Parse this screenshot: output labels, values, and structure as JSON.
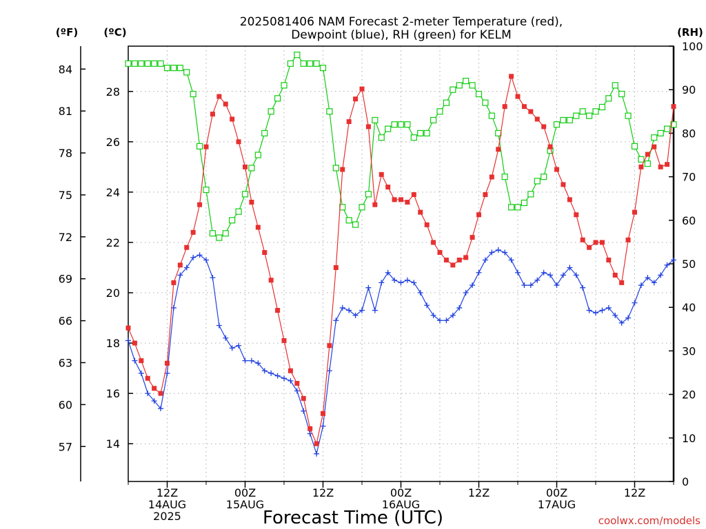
{
  "chart_data": {
    "type": "line",
    "title_line1": "2025081406 NAM Forecast 2-meter Temperature (red),",
    "title_line2": "Dewpoint (blue), RH (green) for KELM",
    "unit_f": "(ºF)",
    "unit_c": "(ºC)",
    "unit_rh": "(RH)",
    "xlabel": "Forecast Time (UTC)",
    "credit": "coolwx.com/models",
    "x_unit": "forecast hour",
    "xlim": [
      6,
      90
    ],
    "ylim_c": [
      12.5,
      29.8
    ],
    "ylim_rh": [
      0,
      100
    ],
    "grid": true,
    "colors": {
      "temperature": "#e83030",
      "dewpoint": "#2040e0",
      "rh": "#10cc10"
    },
    "f_ticks": [
      57,
      60,
      63,
      66,
      69,
      72,
      75,
      78,
      81,
      84
    ],
    "c_ticks": [
      14,
      16,
      18,
      20,
      22,
      24,
      26,
      28
    ],
    "rh_ticks": [
      0,
      10,
      20,
      30,
      40,
      50,
      60,
      70,
      80,
      90,
      100
    ],
    "x_ticks": [
      {
        "hour": 12,
        "lines": [
          "12Z",
          "14AUG",
          "2025"
        ]
      },
      {
        "hour": 24,
        "lines": [
          "00Z",
          "15AUG"
        ]
      },
      {
        "hour": 36,
        "lines": [
          "12Z"
        ]
      },
      {
        "hour": 48,
        "lines": [
          "00Z",
          "16AUG"
        ]
      },
      {
        "hour": 60,
        "lines": [
          "12Z"
        ]
      },
      {
        "hour": 72,
        "lines": [
          "00Z",
          "17AUG"
        ]
      },
      {
        "hour": 84,
        "lines": [
          "12Z"
        ]
      }
    ],
    "x": [
      6,
      7,
      8,
      9,
      10,
      11,
      12,
      13,
      14,
      15,
      16,
      17,
      18,
      19,
      20,
      21,
      22,
      23,
      24,
      25,
      26,
      27,
      28,
      29,
      30,
      31,
      32,
      33,
      34,
      35,
      36,
      37,
      38,
      39,
      40,
      41,
      42,
      43,
      44,
      45,
      46,
      47,
      48,
      49,
      50,
      51,
      52,
      53,
      54,
      55,
      56,
      57,
      58,
      59,
      60,
      61,
      62,
      63,
      64,
      65,
      66,
      67,
      68,
      69,
      70,
      71,
      72,
      73,
      74,
      75,
      76,
      77,
      78,
      79,
      80,
      81,
      82,
      83,
      84,
      85,
      86,
      87,
      88,
      89,
      90
    ],
    "series": [
      {
        "name": "Temperature",
        "color": "#e83030",
        "marker": "filled-square",
        "unit": "C",
        "values": [
          18.6,
          18.0,
          17.3,
          16.6,
          16.2,
          16.0,
          17.2,
          20.4,
          21.1,
          21.8,
          22.4,
          23.5,
          25.8,
          27.1,
          27.8,
          27.5,
          26.9,
          26.0,
          25.0,
          23.6,
          22.6,
          21.6,
          20.5,
          19.3,
          18.1,
          16.9,
          16.4,
          15.8,
          14.6,
          14.0,
          15.2,
          17.9,
          21.0,
          24.9,
          26.8,
          27.7,
          28.1,
          26.6,
          23.5,
          24.7,
          24.2,
          23.7,
          23.7,
          23.6,
          23.9,
          23.2,
          22.7,
          22.0,
          21.6,
          21.3,
          21.1,
          21.3,
          21.4,
          22.2,
          23.1,
          23.9,
          24.6,
          25.7,
          27.4,
          28.6,
          27.8,
          27.4,
          27.2,
          26.9,
          26.6,
          25.8,
          24.9,
          24.3,
          23.7,
          23.1,
          22.1,
          21.8,
          22.0,
          22.0,
          21.3,
          20.7,
          20.4,
          22.1,
          23.2,
          25.0,
          25.5,
          25.8,
          25.0,
          25.1,
          27.4
        ]
      },
      {
        "name": "Dewpoint",
        "color": "#2040e0",
        "marker": "plus",
        "unit": "C",
        "values": [
          18.1,
          17.3,
          16.8,
          16.0,
          15.7,
          15.4,
          16.8,
          19.4,
          20.7,
          21.0,
          21.4,
          21.5,
          21.3,
          20.6,
          18.7,
          18.2,
          17.8,
          17.9,
          17.3,
          17.3,
          17.2,
          16.9,
          16.8,
          16.7,
          16.6,
          16.5,
          16.1,
          15.3,
          14.4,
          13.6,
          14.7,
          16.9,
          18.9,
          19.4,
          19.3,
          19.1,
          19.3,
          20.2,
          19.3,
          20.4,
          20.8,
          20.5,
          20.4,
          20.5,
          20.4,
          20.0,
          19.5,
          19.1,
          18.9,
          18.9,
          19.1,
          19.4,
          20.0,
          20.3,
          20.8,
          21.3,
          21.6,
          21.7,
          21.6,
          21.3,
          20.8,
          20.3,
          20.3,
          20.5,
          20.8,
          20.7,
          20.3,
          20.7,
          21.0,
          20.7,
          20.2,
          19.3,
          19.2,
          19.3,
          19.4,
          19.1,
          18.8,
          19.0,
          19.6,
          20.3,
          20.6,
          20.4,
          20.7,
          21.1,
          21.3
        ]
      },
      {
        "name": "RH",
        "color": "#10cc10",
        "marker": "open-square",
        "unit": "%",
        "values": [
          96,
          96,
          96,
          96,
          96,
          96,
          95,
          95,
          95,
          94,
          89,
          77,
          67,
          57,
          56,
          57,
          60,
          62,
          66,
          72,
          75,
          80,
          85,
          88,
          91,
          96,
          98,
          96,
          96,
          96,
          95,
          85,
          72,
          63,
          60,
          59,
          63,
          66,
          83,
          79,
          81,
          82,
          82,
          82,
          79,
          80,
          80,
          83,
          85,
          87,
          90,
          91,
          92,
          91,
          89,
          87,
          84,
          80,
          70,
          63,
          63,
          64,
          66,
          69,
          70,
          76,
          82,
          83,
          83,
          84,
          85,
          84,
          85,
          86,
          88,
          91,
          89,
          84,
          77,
          74,
          73,
          79,
          80,
          81,
          82
        ]
      }
    ]
  }
}
